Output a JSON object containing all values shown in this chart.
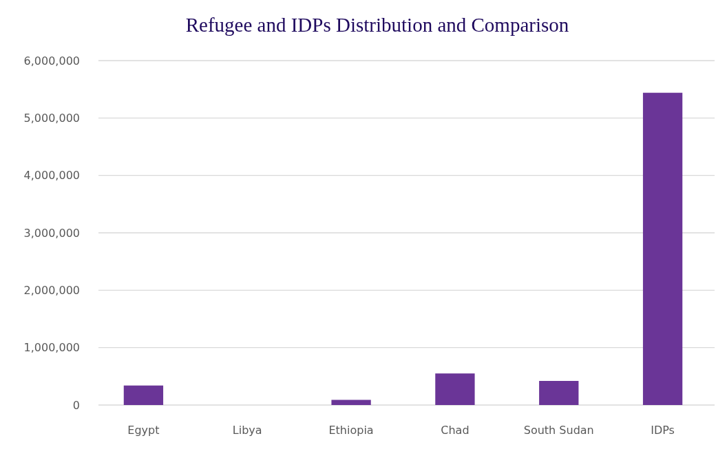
{
  "chart_data": {
    "type": "bar",
    "title": "Refugee and IDPs Distribution and Comparison",
    "categories": [
      "Egypt",
      "Libya",
      "Ethiopia",
      "Chad",
      "South Sudan",
      "IDPs"
    ],
    "values": [
      340000,
      0,
      90000,
      550000,
      420000,
      5440000
    ],
    "color": "#6a3597",
    "ylim": [
      0,
      6000000
    ],
    "yticks": [
      {
        "value": 0,
        "label": "0"
      },
      {
        "value": 1000000,
        "label": "1,000,000"
      },
      {
        "value": 2000000,
        "label": "2,000,000"
      },
      {
        "value": 3000000,
        "label": "3,000,000"
      },
      {
        "value": 4000000,
        "label": "4,000,000"
      },
      {
        "value": 5000000,
        "label": "5,000,000"
      },
      {
        "value": 6000000,
        "label": "6,000,000"
      }
    ],
    "grid": "y"
  }
}
